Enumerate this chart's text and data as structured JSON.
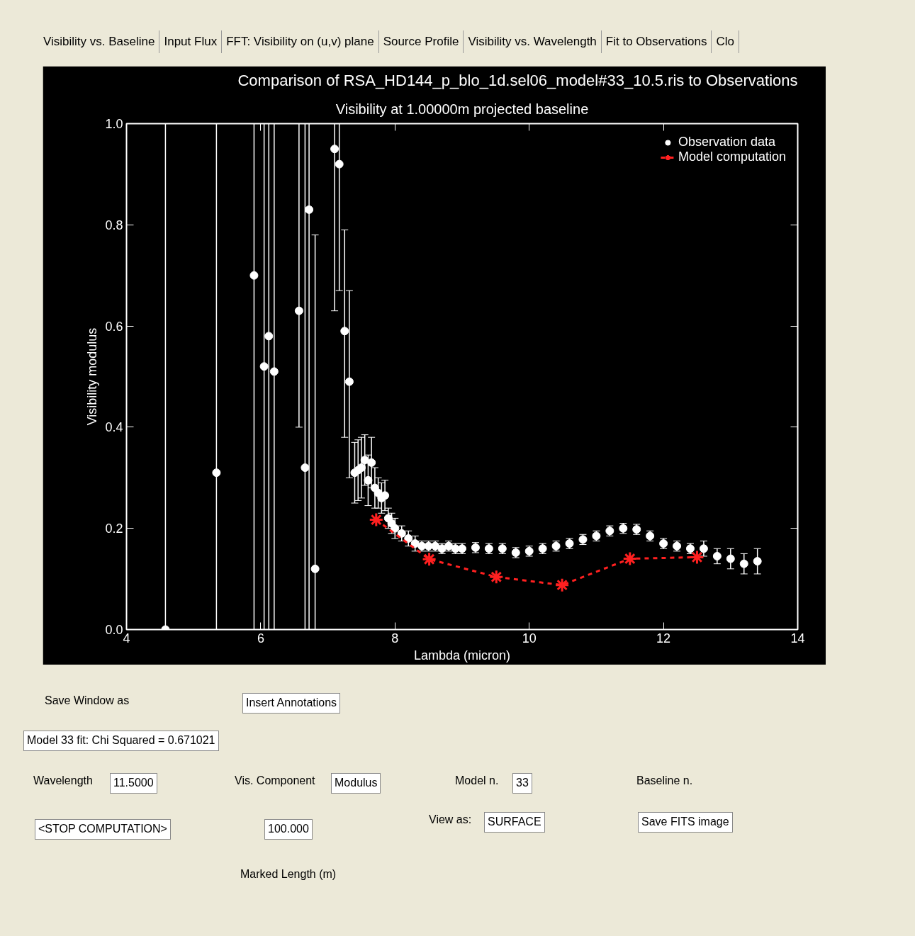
{
  "chart_data": {
    "type": "scatter",
    "title": "Comparison of RSA_HD144_p_blo_1d.sel06_model#33_10.5.ris to Observations",
    "subtitle": "Visibility at 1.00000m projected baseline",
    "xlabel": "Lambda (micron)",
    "ylabel": "Visibility modulus",
    "xlim": [
      4,
      14
    ],
    "xticks": [
      4,
      6,
      8,
      10,
      12,
      14
    ],
    "ylim": [
      0,
      1
    ],
    "yticks": [
      {
        "value": 0,
        "label": "0.0"
      },
      {
        "value": 0.2,
        "label": "0.2"
      },
      {
        "value": 0.4,
        "label": "0.4"
      },
      {
        "value": 0.6,
        "label": "0.6"
      },
      {
        "value": 0.8,
        "label": "0.8"
      },
      {
        "value": 1,
        "label": "1.0"
      }
    ],
    "grid": false,
    "legend": "top right",
    "series": [
      {
        "name": "Observation data",
        "marker": "circle",
        "color": "#ffffff",
        "x": [
          4.58,
          5.34,
          5.9,
          6.05,
          6.12,
          6.2,
          6.57,
          6.66,
          6.72,
          6.81,
          7.1,
          7.17,
          7.25,
          7.32,
          7.4,
          7.45,
          7.5,
          7.55,
          7.6,
          7.65,
          7.7,
          7.75,
          7.8,
          7.85,
          7.9,
          7.95,
          8.0,
          8.1,
          8.2,
          8.3,
          8.4,
          8.5,
          8.6,
          8.7,
          8.8,
          8.9,
          9.0,
          9.2,
          9.4,
          9.6,
          9.8,
          10.0,
          10.2,
          10.4,
          10.6,
          10.8,
          11.0,
          11.2,
          11.4,
          11.6,
          11.8,
          12.0,
          12.2,
          12.4,
          12.6,
          12.8,
          13.0,
          13.2,
          13.4
        ],
        "values": [
          0.0,
          0.31,
          0.7,
          0.52,
          0.58,
          0.51,
          0.63,
          0.32,
          0.83,
          0.12,
          0.95,
          0.92,
          0.59,
          0.49,
          0.31,
          0.315,
          0.32,
          0.335,
          0.295,
          0.33,
          0.28,
          0.27,
          0.26,
          0.265,
          0.22,
          0.21,
          0.2,
          0.19,
          0.18,
          0.17,
          0.165,
          0.165,
          0.165,
          0.16,
          0.165,
          0.16,
          0.16,
          0.162,
          0.16,
          0.16,
          0.152,
          0.155,
          0.16,
          0.165,
          0.17,
          0.178,
          0.185,
          0.195,
          0.2,
          0.198,
          0.185,
          0.17,
          0.165,
          0.16,
          0.16,
          0.145,
          0.14,
          0.13,
          0.135
        ],
        "errors": [
          [
            0,
            1
          ],
          [
            0,
            1
          ],
          [
            0,
            1
          ],
          [
            0,
            1
          ],
          [
            0,
            1
          ],
          [
            0,
            1
          ],
          [
            0.4,
            1
          ],
          [
            0,
            1
          ],
          [
            0,
            1
          ],
          [
            0,
            0.78
          ],
          [
            0.63,
            1
          ],
          [
            0.67,
            1
          ],
          [
            0.38,
            0.79
          ],
          [
            0.3,
            0.67
          ],
          0.06,
          0.06,
          0.06,
          0.05,
          0.05,
          0.05,
          0.04,
          0.03,
          0.03,
          0.03,
          0.02,
          0.02,
          0.02,
          0.015,
          0.015,
          0.015,
          0.01,
          0.01,
          0.01,
          0.01,
          0.01,
          0.01,
          0.01,
          0.01,
          0.01,
          0.01,
          0.01,
          0.01,
          0.01,
          0.01,
          0.01,
          0.01,
          0.01,
          0.01,
          0.01,
          0.01,
          0.01,
          0.01,
          0.01,
          0.01,
          0.015,
          0.015,
          0.02,
          0.02,
          0.025
        ]
      },
      {
        "name": "Model computation",
        "type": "line",
        "marker": "cross",
        "line_style": "dashed",
        "color": "#ff2020",
        "x": [
          7.72,
          8.51,
          9.51,
          10.49,
          11.5,
          12.5
        ],
        "values": [
          0.217,
          0.139,
          0.104,
          0.088,
          0.14,
          0.143
        ]
      }
    ],
    "annotations": [
      "Visibility vs. Baseline",
      "Input Flux",
      "FFT: Visibility on (u,v) plane",
      "Source Profile",
      "Visibility vs. Wavelength",
      "Fit to Observations",
      "Clo",
      "Save Window as",
      "Insert Annotations",
      "Model 33 fit: Chi Squared = 0.671021",
      "Wavelength",
      "11.5000",
      "Vis. Component",
      "Modulus",
      "Model n.",
      "33",
      "Baseline n.",
      "View as:",
      "SURFACE",
      "Save FITS image",
      "<STOP COMPUTATION>",
      "100.000",
      "Marked Length (m)"
    ]
  }
}
